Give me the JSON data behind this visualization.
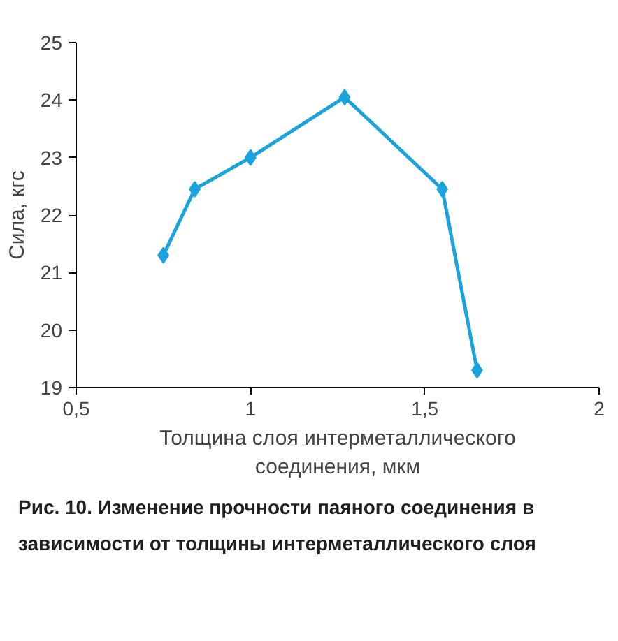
{
  "chart_data": {
    "type": "line",
    "xlabel": "Толщина слоя интерметаллического соединения, мкм",
    "ylabel": "Сила, кгс",
    "x": [
      0.75,
      0.84,
      1.0,
      1.27,
      1.55,
      1.65
    ],
    "series": [
      {
        "color": "#1aa3dd",
        "values": [
          21.3,
          22.45,
          23.0,
          24.05,
          22.45,
          19.3
        ]
      }
    ],
    "xlim": [
      0.5,
      2
    ],
    "xticks": [
      {
        "value": 0.5,
        "label": "0,5"
      },
      1,
      {
        "value": 1.5,
        "label": "1,5"
      },
      2
    ],
    "ylim": [
      19,
      25
    ],
    "yticks": [
      19,
      20,
      21,
      22,
      23,
      24,
      25
    ],
    "grid": false,
    "marker": "diamond",
    "line_style": "solid",
    "annotations": [
      "Рис. 10. Изменение прочности паяного соединения в зависимости от толщины интерметаллического слоя"
    ]
  }
}
